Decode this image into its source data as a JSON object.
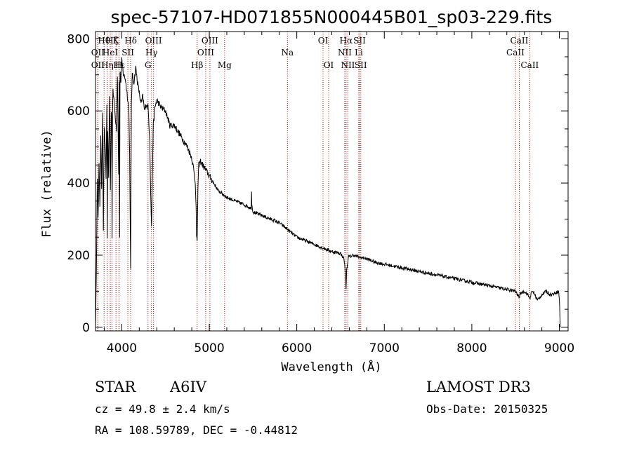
{
  "chart_data": {
    "type": "line",
    "title": "spec-57107-HD071855N000445B01_sp03-229.fits",
    "xlabel": "Wavelength (Å)",
    "ylabel": "Flux (relative)",
    "xlim": [
      3700,
      9100
    ],
    "ylim": [
      -10,
      820
    ],
    "xticks": [
      4000,
      5000,
      6000,
      7000,
      8000,
      9000
    ],
    "yticks": [
      0,
      200,
      400,
      600,
      800
    ],
    "grid": false,
    "series": [
      {
        "name": "flux",
        "x": [
          3700,
          3710,
          3720,
          3730,
          3740,
          3750,
          3760,
          3770,
          3780,
          3790,
          3800,
          3810,
          3820,
          3830,
          3835,
          3840,
          3850,
          3860,
          3870,
          3880,
          3885,
          3889,
          3895,
          3900,
          3920,
          3940,
          3950,
          3960,
          3965,
          3970,
          3975,
          3980,
          3990,
          4000,
          4020,
          4040,
          4060,
          4080,
          4090,
          4101,
          4110,
          4120,
          4140,
          4160,
          4180,
          4200,
          4220,
          4240,
          4260,
          4280,
          4300,
          4320,
          4330,
          4340,
          4350,
          4360,
          4380,
          4400,
          4450,
          4500,
          4550,
          4600,
          4650,
          4700,
          4750,
          4800,
          4820,
          4840,
          4850,
          4855,
          4861,
          4866,
          4870,
          4880,
          4900,
          4950,
          5000,
          5050,
          5100,
          5150,
          5200,
          5300,
          5400,
          5480,
          5483,
          5486,
          5500,
          5600,
          5700,
          5800,
          5900,
          5950,
          6000,
          6100,
          6200,
          6300,
          6400,
          6500,
          6540,
          6555,
          6563,
          6570,
          6590,
          6650,
          6700,
          6800,
          6900,
          7000,
          7200,
          7400,
          7600,
          7800,
          8000,
          8200,
          8400,
          8500,
          8520,
          8542,
          8560,
          8600,
          8640,
          8662,
          8680,
          8700,
          8750,
          8800,
          8850,
          8900,
          8950,
          8990,
          9000,
          9010
        ],
        "y": [
          0,
          150,
          420,
          300,
          460,
          330,
          540,
          380,
          600,
          270,
          560,
          500,
          420,
          620,
          250,
          540,
          420,
          640,
          380,
          600,
          580,
          250,
          610,
          660,
          600,
          550,
          700,
          520,
          420,
          680,
          250,
          710,
          680,
          740,
          700,
          690,
          650,
          610,
          480,
          160,
          620,
          700,
          680,
          720,
          680,
          650,
          620,
          640,
          600,
          620,
          610,
          520,
          380,
          280,
          420,
          560,
          610,
          630,
          610,
          600,
          560,
          560,
          540,
          520,
          500,
          470,
          440,
          400,
          330,
          250,
          240,
          300,
          380,
          450,
          460,
          440,
          420,
          400,
          380,
          370,
          360,
          350,
          340,
          330,
          380,
          340,
          320,
          310,
          300,
          290,
          270,
          260,
          250,
          240,
          230,
          220,
          210,
          205,
          190,
          150,
          110,
          160,
          195,
          200,
          195,
          190,
          180,
          175,
          165,
          155,
          145,
          135,
          125,
          115,
          105,
          100,
          90,
          85,
          95,
          100,
          90,
          80,
          95,
          100,
          75,
          90,
          100,
          90,
          95,
          100,
          80,
          0
        ],
        "noise": 6
      }
    ],
    "line_marks": [
      {
        "wave": 3727,
        "label": "OII",
        "row": 2
      },
      {
        "wave": 3727,
        "label": "OII",
        "row": 3
      },
      {
        "wave": 3798,
        "label": "Hθ",
        "row": 1
      },
      {
        "wave": 3835,
        "label": "Hη",
        "row": 3
      },
      {
        "wave": 3869,
        "label": "HeI",
        "row": 2
      },
      {
        "wave": 3889,
        "label": "Hζ",
        "row": 1
      },
      {
        "wave": 3934,
        "label": "K",
        "row": 1
      },
      {
        "wave": 3968,
        "label": "H",
        "row": 3
      },
      {
        "wave": 3970,
        "label": "Hε",
        "row": 3
      },
      {
        "wave": 4070,
        "label": "SII",
        "row": 2
      },
      {
        "wave": 4102,
        "label": "Hδ",
        "row": 1
      },
      {
        "wave": 4300,
        "label": "G",
        "row": 3
      },
      {
        "wave": 4340,
        "label": "Hγ",
        "row": 2
      },
      {
        "wave": 4363,
        "label": "OIII",
        "row": 1
      },
      {
        "wave": 4861,
        "label": "Hβ",
        "row": 3
      },
      {
        "wave": 4959,
        "label": "OIII",
        "row": 2
      },
      {
        "wave": 5007,
        "label": "OIII",
        "row": 1
      },
      {
        "wave": 5175,
        "label": "Mg",
        "row": 3
      },
      {
        "wave": 5893,
        "label": "Na",
        "row": 2
      },
      {
        "wave": 6300,
        "label": "OI",
        "row": 1
      },
      {
        "wave": 6364,
        "label": "OI",
        "row": 3
      },
      {
        "wave": 6548,
        "label": "NII",
        "row": 2
      },
      {
        "wave": 6563,
        "label": "Hα",
        "row": 1
      },
      {
        "wave": 6584,
        "label": "NII",
        "row": 3
      },
      {
        "wave": 6708,
        "label": "Li",
        "row": 2
      },
      {
        "wave": 6717,
        "label": "SII",
        "row": 1
      },
      {
        "wave": 6731,
        "label": "SII",
        "row": 3
      },
      {
        "wave": 8498,
        "label": "CaII",
        "row": 2
      },
      {
        "wave": 8542,
        "label": "CaII",
        "row": 1
      },
      {
        "wave": 8662,
        "label": "CaII",
        "row": 3
      }
    ],
    "line_color": "#c00000"
  },
  "info": {
    "object_class": "STAR",
    "subclass": "A6IV",
    "survey": "LAMOST DR3",
    "redshift": "cz = 49.8 ± 2.4 km/s",
    "obs_date": "Obs-Date: 20150325",
    "coords": "RA = 108.59789, DEC =  -0.44812"
  }
}
